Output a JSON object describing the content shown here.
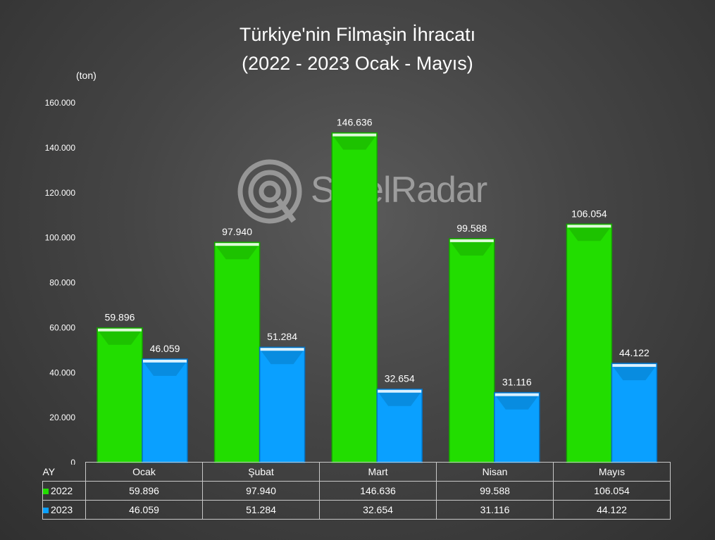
{
  "title_line1": "Türkiye'nin Filmaşin İhracatı",
  "title_line2": "(2022 - 2023 Ocak - Mayıs)",
  "unit_label": "(ton)",
  "watermark": {
    "brand_steel": "Steel",
    "brand_radar": "Radar"
  },
  "table": {
    "row_header": "AY"
  },
  "chart_data": {
    "type": "bar",
    "categories": [
      "Ocak",
      "Şubat",
      "Mart",
      "Nisan",
      "Mayıs"
    ],
    "series": [
      {
        "name": "2022",
        "color": "#22dd00",
        "values": [
          59896,
          97940,
          146636,
          99588,
          106054
        ],
        "labels": [
          "59.896",
          "97.940",
          "146.636",
          "99.588",
          "106.054"
        ]
      },
      {
        "name": "2023",
        "color": "#0aa0ff",
        "values": [
          46059,
          51284,
          32654,
          31116,
          44122
        ],
        "labels": [
          "46.059",
          "51.284",
          "32.654",
          "31.116",
          "44.122"
        ]
      }
    ],
    "ylim": [
      0,
      160000
    ],
    "yticks": [
      0,
      20000,
      40000,
      60000,
      80000,
      100000,
      120000,
      140000,
      160000
    ],
    "ytick_labels": [
      "0",
      "20.000",
      "40.000",
      "60.000",
      "80.000",
      "100.000",
      "120.000",
      "140.000",
      "160.000"
    ],
    "grid": false
  }
}
